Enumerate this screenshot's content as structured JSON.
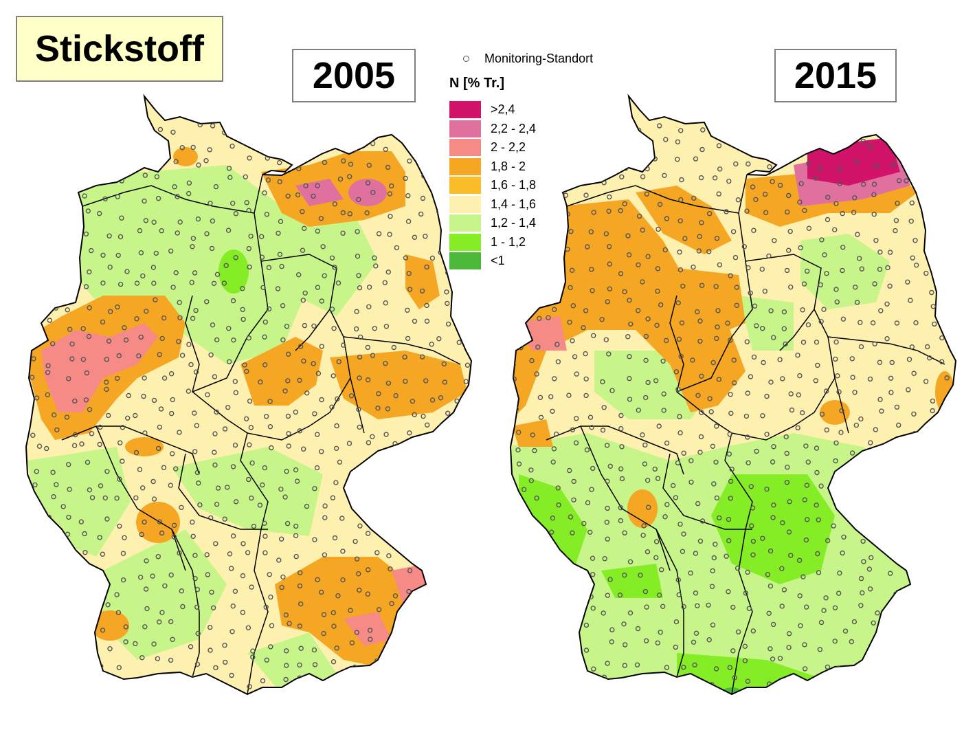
{
  "title": "Stickstoff",
  "maps": {
    "left_year": "2005",
    "right_year": "2015"
  },
  "legend": {
    "site_label": "Monitoring-Standort",
    "title": "N [% Tr.]",
    "classes": [
      {
        "label": ">2,4",
        "color": "#d1146a"
      },
      {
        "label": "2,2 - 2,4",
        "color": "#e0709e"
      },
      {
        "label": "2 - 2,2",
        "color": "#f58a86"
      },
      {
        "label": "1,8 - 2",
        "color": "#f5a623"
      },
      {
        "label": "1,6 - 1,8",
        "color": "#fbbc2a"
      },
      {
        "label": "1,4 - 1,6",
        "color": "#fef1b0"
      },
      {
        "label": "1,2 - 1,4",
        "color": "#c8f58a"
      },
      {
        "label": "1 - 1,2",
        "color": "#84ed26"
      },
      {
        "label": "<1",
        "color": "#4cb83a"
      }
    ]
  },
  "colors": {
    "title_bg": "#ffffc8",
    "box_border": "#7f7f7f",
    "border_line": "#000000"
  }
}
